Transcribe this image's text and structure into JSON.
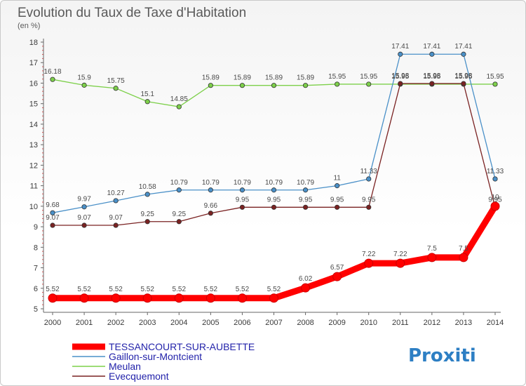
{
  "chart_data": {
    "type": "line",
    "title": "Evolution du Taux de Taxe d'Habitation",
    "subtitle": "(en %)",
    "xlabel": "",
    "ylabel": "",
    "x": [
      "2000",
      "2001",
      "2002",
      "2003",
      "2004",
      "2005",
      "2006",
      "2007",
      "2008",
      "2009",
      "2010",
      "2011",
      "2012",
      "2013",
      "2014"
    ],
    "ylim": [
      5,
      18
    ],
    "yticks": [
      5,
      6,
      7,
      8,
      9,
      10,
      11,
      12,
      13,
      14,
      15,
      16,
      17,
      18
    ],
    "grid": false,
    "legend": "bottom-left",
    "series": [
      {
        "name": "TESSANCOURT-SUR-AUBETTE",
        "color": "#ff0000",
        "values": [
          5.52,
          5.52,
          5.52,
          5.52,
          5.52,
          5.52,
          5.52,
          5.52,
          6.02,
          6.57,
          7.22,
          7.22,
          7.5,
          7.5,
          10
        ]
      },
      {
        "name": "Gaillon-sur-Montcient",
        "color": "#4a90c8",
        "values": [
          9.68,
          9.97,
          10.27,
          10.58,
          10.79,
          10.79,
          10.79,
          10.79,
          10.79,
          11,
          11.33,
          17.41,
          17.41,
          17.41,
          11.33
        ]
      },
      {
        "name": "Meulan",
        "color": "#7dd04a",
        "values": [
          16.18,
          15.9,
          15.75,
          15.1,
          14.85,
          15.89,
          15.89,
          15.89,
          15.89,
          15.95,
          15.95,
          15.95,
          15.95,
          15.95,
          15.95
        ]
      },
      {
        "name": "Evecquemont",
        "color": "#7a2222",
        "values": [
          9.07,
          9.07,
          9.07,
          9.25,
          9.25,
          9.66,
          9.95,
          9.95,
          9.95,
          9.95,
          9.95,
          15.98,
          15.98,
          15.98,
          9.95
        ]
      }
    ]
  },
  "logo": {
    "text": "Proxiti"
  }
}
